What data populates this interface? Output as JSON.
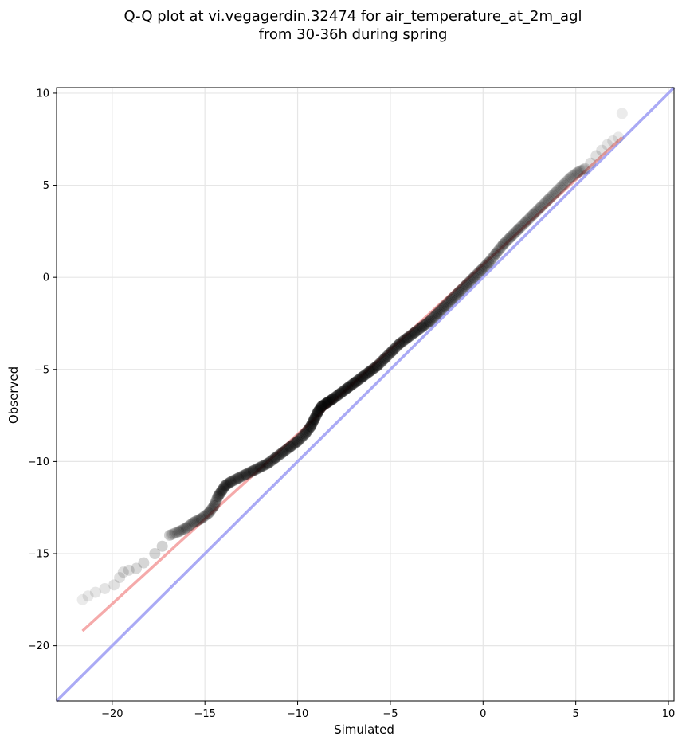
{
  "chart_data": {
    "type": "scatter",
    "title": "Q-Q plot at vi.vegagerdin.32474 for air_temperature_at_2m_agl",
    "subtitle": "from 30-36h during spring",
    "xlabel": "Simulated",
    "ylabel": "Observed",
    "xlim": [
      -23.0,
      10.3
    ],
    "ylim": [
      -23.0,
      10.3
    ],
    "x_ticks": [
      -20,
      -15,
      -10,
      -5,
      0,
      5,
      10
    ],
    "y_ticks": [
      -20,
      -15,
      -10,
      -5,
      0,
      5,
      10
    ],
    "x_tick_labels": [
      "−20",
      "−15",
      "−10",
      "−5",
      "0",
      "5",
      "10"
    ],
    "y_tick_labels": [
      "−20",
      "−15",
      "−10",
      "−5",
      "0",
      "5",
      "10"
    ],
    "grid": true,
    "identity_line": {
      "x": [
        -23.0,
        10.3
      ],
      "y": [
        -23.0,
        10.3
      ],
      "color": "#aaaaf5"
    },
    "fit_line": {
      "x": [
        -21.6,
        7.5
      ],
      "y": [
        -19.2,
        7.6
      ],
      "color": "#f5aaaa"
    },
    "marker_color": "#000000",
    "series": [
      {
        "x": [
          -21.6,
          -21.3,
          -20.9,
          -20.4,
          -19.9,
          -19.6,
          -19.4,
          -19.1,
          -18.7,
          -18.3,
          -17.7,
          -17.3,
          -16.9,
          -16.4,
          -16.0,
          -15.6,
          -15.2,
          -14.8,
          -14.5,
          -14.3,
          -14.1,
          -13.9,
          -13.6,
          -13.2,
          -12.8,
          -12.4,
          -12.0,
          -11.6,
          -11.2,
          -10.8,
          -10.4,
          -10.0,
          -9.6,
          -9.3,
          -9.1,
          -8.9,
          -8.7,
          -8.4,
          -8.1,
          -7.7,
          -7.3,
          -6.9,
          -6.5,
          -6.1,
          -5.7,
          -5.3,
          -4.9,
          -4.5,
          -4.1,
          -3.7,
          -3.3,
          -2.9,
          -2.5,
          -2.1,
          -1.7,
          -1.3,
          -0.9,
          -0.5,
          -0.1,
          0.3,
          0.7,
          1.1,
          1.5,
          1.9,
          2.3,
          2.7,
          3.1,
          3.5,
          3.9,
          4.3,
          4.7,
          5.1,
          5.5,
          5.8,
          6.1,
          6.4,
          6.7,
          7.0,
          7.3,
          7.5
        ],
        "y": [
          -17.5,
          -17.3,
          -17.1,
          -16.9,
          -16.7,
          -16.3,
          -16.0,
          -15.9,
          -15.8,
          -15.5,
          -15.0,
          -14.6,
          -14.0,
          -13.8,
          -13.6,
          -13.3,
          -13.1,
          -12.8,
          -12.4,
          -11.9,
          -11.6,
          -11.3,
          -11.1,
          -10.9,
          -10.7,
          -10.5,
          -10.3,
          -10.1,
          -9.8,
          -9.5,
          -9.2,
          -8.9,
          -8.5,
          -8.1,
          -7.7,
          -7.3,
          -7.0,
          -6.8,
          -6.6,
          -6.3,
          -6.0,
          -5.7,
          -5.4,
          -5.1,
          -4.8,
          -4.4,
          -4.0,
          -3.6,
          -3.3,
          -3.0,
          -2.7,
          -2.4,
          -2.0,
          -1.6,
          -1.2,
          -0.8,
          -0.4,
          0.0,
          0.4,
          0.8,
          1.3,
          1.8,
          2.2,
          2.6,
          3.0,
          3.4,
          3.8,
          4.2,
          4.6,
          5.0,
          5.4,
          5.7,
          5.9,
          6.2,
          6.6,
          6.9,
          7.2,
          7.4,
          7.6,
          8.9
        ]
      }
    ]
  }
}
